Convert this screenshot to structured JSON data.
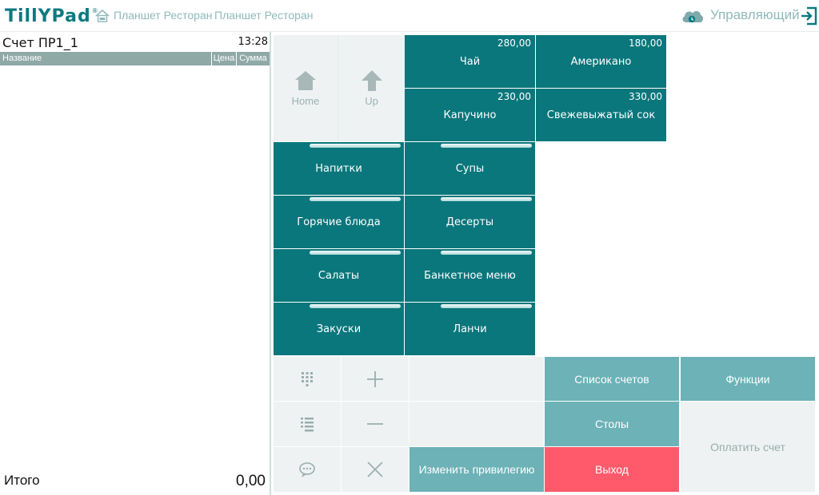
{
  "header": {
    "logo_text": "TillYPad",
    "logo_reg": "®",
    "breadcrumb": [
      "Планшет Ресторан",
      "Планшет Ресторан"
    ],
    "user": "Управляющий"
  },
  "check": {
    "title": "Счет ПР1_1",
    "time": "13:28",
    "columns": {
      "name": "Название",
      "price": "Цена",
      "sum": "Сумма"
    },
    "total_label": "Итого",
    "total_value": "0,00"
  },
  "nav": {
    "home": "Home",
    "up": "Up"
  },
  "products": [
    {
      "name": "Чай",
      "price": "280,00"
    },
    {
      "name": "Американо",
      "price": "180,00"
    },
    {
      "name": "Капучино",
      "price": "230,00"
    },
    {
      "name": "Свежевыжатый сок",
      "price": "330,00"
    }
  ],
  "groups": [
    {
      "name": "Напитки"
    },
    {
      "name": "Супы"
    },
    {
      "name": "Горячие блюда"
    },
    {
      "name": "Десерты"
    },
    {
      "name": "Салаты"
    },
    {
      "name": "Банкетное меню"
    },
    {
      "name": "Закуски"
    },
    {
      "name": "Ланчи"
    }
  ],
  "actions": {
    "change_privilege": "Изменить привилегию",
    "check_list": "Список счетов",
    "tables": "Столы",
    "exit": "Выход",
    "functions": "Функции",
    "pay_check": "Оплатить счет"
  },
  "colors": {
    "tile": "#0a777c",
    "action_teal": "#6cb2b7",
    "exit_red": "#ff5a6b",
    "brand": "#0a7a80"
  }
}
